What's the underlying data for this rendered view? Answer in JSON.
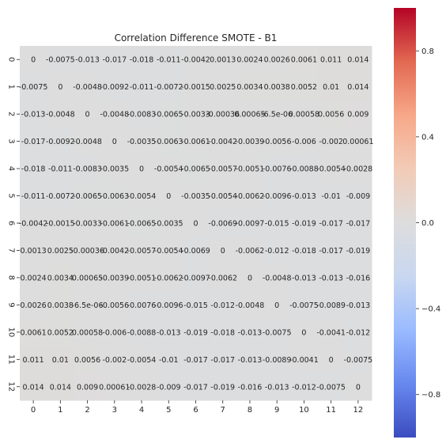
{
  "chart_data": {
    "type": "heatmap",
    "title": "Correlation Difference SMOTE - B1",
    "xlabel": "",
    "ylabel": "",
    "x_categories": [
      "0",
      "1",
      "2",
      "3",
      "4",
      "5",
      "6",
      "7",
      "8",
      "9",
      "10",
      "11",
      "12"
    ],
    "y_categories": [
      "0",
      "1",
      "2",
      "3",
      "4",
      "5",
      "6",
      "7",
      "8",
      "9",
      "10",
      "11",
      "12"
    ],
    "values": [
      [
        0,
        -0.0075,
        -0.013,
        -0.017,
        -0.018,
        -0.011,
        -0.0042,
        0.0013,
        0.0024,
        0.0026,
        0.0061,
        0.011,
        0.014
      ],
      [
        -0.0075,
        0,
        -0.0048,
        -0.0092,
        -0.011,
        -0.0072,
        -0.0015,
        0.0025,
        0.0034,
        0.0038,
        0.0052,
        0.01,
        0.014
      ],
      [
        -0.013,
        -0.0048,
        0,
        -0.0048,
        -0.0083,
        -0.0065,
        -0.0033,
        -0.00036,
        0.00065,
        -6.5e-06,
        0.00058,
        0.0056,
        0.009
      ],
      [
        -0.017,
        -0.0092,
        -0.0048,
        0,
        -0.0035,
        -0.0063,
        -0.0061,
        -0.0042,
        -0.0039,
        -0.0056,
        -0.006,
        -0.002,
        0.00061
      ],
      [
        -0.018,
        -0.011,
        -0.0083,
        -0.0035,
        0,
        -0.0054,
        -0.0065,
        -0.0057,
        -0.0051,
        -0.0076,
        -0.0088,
        -0.0054,
        -0.0028
      ],
      [
        -0.011,
        -0.0072,
        -0.0065,
        -0.0063,
        -0.0054,
        0,
        -0.0035,
        -0.0054,
        -0.0062,
        -0.0096,
        -0.013,
        -0.01,
        -0.009
      ],
      [
        -0.0042,
        -0.0015,
        -0.0033,
        -0.0061,
        -0.0065,
        -0.0035,
        0,
        -0.0069,
        -0.0097,
        -0.015,
        -0.019,
        -0.017,
        -0.017
      ],
      [
        0.0013,
        0.0025,
        -0.00036,
        -0.0042,
        -0.0057,
        -0.0054,
        -0.0069,
        0,
        -0.0062,
        -0.012,
        -0.018,
        -0.017,
        -0.019
      ],
      [
        0.0024,
        0.0034,
        0.00065,
        -0.0039,
        -0.0051,
        -0.0062,
        -0.0097,
        -0.0062,
        0,
        -0.0048,
        -0.013,
        -0.013,
        -0.016
      ],
      [
        0.0026,
        0.0038,
        -6.5e-06,
        -0.0056,
        -0.0076,
        -0.0096,
        -0.015,
        -0.012,
        -0.0048,
        0,
        -0.0075,
        -0.0089,
        -0.013
      ],
      [
        0.0061,
        0.0052,
        0.00058,
        -0.006,
        -0.0088,
        -0.013,
        -0.019,
        -0.018,
        -0.013,
        -0.0075,
        0,
        -0.0041,
        -0.012
      ],
      [
        0.011,
        0.01,
        0.0056,
        -0.002,
        -0.0054,
        -0.01,
        -0.017,
        -0.017,
        -0.013,
        -0.0089,
        -0.0041,
        0,
        -0.0075
      ],
      [
        0.014,
        0.014,
        0.009,
        0.00061,
        -0.0028,
        -0.009,
        -0.017,
        -0.019,
        -0.016,
        -0.013,
        -0.012,
        -0.0075,
        0
      ]
    ],
    "cell_labels": [
      [
        "0",
        "-0.0075",
        "-0.013",
        "-0.017",
        "-0.018",
        "-0.011",
        "-0.0042",
        "0.0013",
        "0.0024",
        "0.0026",
        "0.0061",
        "0.011",
        "0.014"
      ],
      [
        "-0.0075",
        "0",
        "-0.0048",
        "-0.0092",
        "-0.011",
        "-0.0072",
        "-0.0015",
        "0.0025",
        "0.0034",
        "0.0038",
        "0.0052",
        "0.01",
        "0.014"
      ],
      [
        "-0.013",
        "-0.0048",
        "0",
        "-0.0048",
        "-0.0083",
        "-0.0065",
        "-0.0033",
        "-0.00036",
        "0.00065",
        "-6.5e-06",
        "0.00058",
        "0.0056",
        "0.009"
      ],
      [
        "-0.017",
        "-0.0092",
        "-0.0048",
        "0",
        "-0.0035",
        "-0.0063",
        "-0.0061",
        "-0.0042",
        "-0.0039",
        "-0.0056",
        "-0.006",
        "-0.002",
        "0.00061"
      ],
      [
        "-0.018",
        "-0.011",
        "-0.0083",
        "-0.0035",
        "0",
        "-0.0054",
        "-0.0065",
        "-0.0057",
        "-0.0051",
        "-0.0076",
        "-0.0088",
        "-0.0054",
        "-0.0028"
      ],
      [
        "-0.011",
        "-0.0072",
        "-0.0065",
        "-0.0063",
        "-0.0054",
        "0",
        "-0.0035",
        "-0.0054",
        "-0.0062",
        "-0.0096",
        "-0.013",
        "-0.01",
        "-0.009"
      ],
      [
        "-0.0042",
        "-0.0015",
        "-0.0033",
        "-0.0061",
        "-0.0065",
        "-0.0035",
        "0",
        "-0.0069",
        "-0.0097",
        "-0.015",
        "-0.019",
        "-0.017",
        "-0.017"
      ],
      [
        "0.0013",
        "0.0025",
        "-0.00036",
        "-0.0042",
        "-0.0057",
        "-0.0054",
        "-0.0069",
        "0",
        "-0.0062",
        "-0.012",
        "-0.018",
        "-0.017",
        "-0.019"
      ],
      [
        "0.0024",
        "0.0034",
        "0.00065",
        "-0.0039",
        "-0.0051",
        "-0.0062",
        "-0.0097",
        "-0.0062",
        "0",
        "-0.0048",
        "-0.013",
        "-0.013",
        "-0.016"
      ],
      [
        "0.0026",
        "0.0038",
        "-6.5e-06",
        "-0.0056",
        "-0.0076",
        "-0.0096",
        "-0.015",
        "-0.012",
        "-0.0048",
        "0",
        "-0.0075",
        "-0.0089",
        "-0.013"
      ],
      [
        "0.0061",
        "0.0052",
        "0.00058",
        "-0.006",
        "-0.0088",
        "-0.013",
        "-0.019",
        "-0.018",
        "-0.013",
        "-0.0075",
        "0",
        "-0.0041",
        "-0.012"
      ],
      [
        "0.011",
        "0.01",
        "0.0056",
        "-0.002",
        "-0.0054",
        "-0.01",
        "-0.017",
        "-0.017",
        "-0.013",
        "-0.0089",
        "-0.0041",
        "0",
        "-0.0075"
      ],
      [
        "0.014",
        "0.014",
        "0.009",
        "0.00061",
        "-0.0028",
        "-0.009",
        "-0.017",
        "-0.019",
        "-0.016",
        "-0.013",
        "-0.012",
        "-0.0075",
        "0"
      ]
    ],
    "colormap": "coolwarm",
    "value_range": [
      -1,
      1
    ],
    "colorbar": {
      "ticks": [
        -0.8,
        -0.4,
        0.0,
        0.4,
        0.8
      ],
      "tick_labels": [
        "−0.8",
        "−0.4",
        "0.0",
        "0.4",
        "0.8"
      ],
      "colors": [
        "#3b4cc0",
        "#6788ee",
        "#9abbff",
        "#c9d7f0",
        "#dddddd",
        "#f2cbb7",
        "#f7a889",
        "#e26952",
        "#b40426"
      ]
    },
    "grid": false,
    "legend": "colorbar-right"
  }
}
